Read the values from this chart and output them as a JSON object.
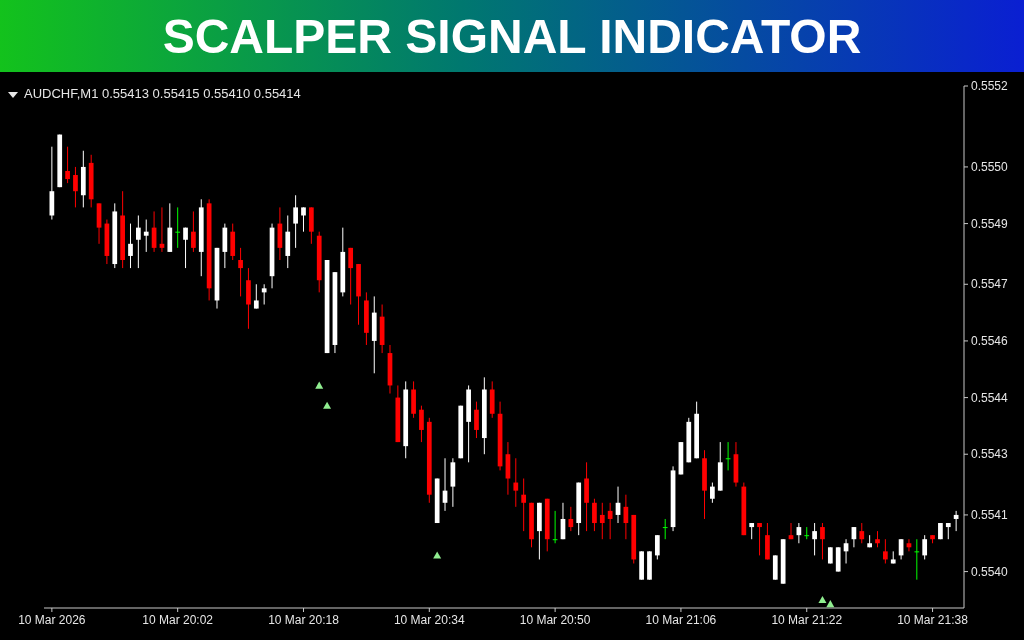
{
  "chart_data": {
    "type": "candlestick",
    "title": "SCALPER SIGNAL INDICATOR",
    "subtitle": "AUDCHF,M1  0.55413 0.55415 0.55410 0.55414",
    "x": [
      "2026-03-10T19:46",
      "2026-03-10T19:47",
      "2026-03-10T19:48",
      "2026-03-10T19:49",
      "2026-03-10T19:50",
      "2026-03-10T19:51",
      "2026-03-10T19:52",
      "2026-03-10T19:53",
      "2026-03-10T19:54",
      "2026-03-10T19:55",
      "2026-03-10T19:56",
      "2026-03-10T19:57",
      "2026-03-10T19:58",
      "2026-03-10T19:59",
      "2026-03-10T20:00",
      "2026-03-10T20:01",
      "2026-03-10T20:02",
      "2026-03-10T20:03",
      "2026-03-10T20:04",
      "2026-03-10T20:05",
      "2026-03-10T20:06",
      "2026-03-10T20:07",
      "2026-03-10T20:08",
      "2026-03-10T20:09",
      "2026-03-10T20:10",
      "2026-03-10T20:11",
      "2026-03-10T20:12",
      "2026-03-10T20:13",
      "2026-03-10T20:14",
      "2026-03-10T20:15",
      "2026-03-10T20:16",
      "2026-03-10T20:17",
      "2026-03-10T20:18",
      "2026-03-10T20:19",
      "2026-03-10T20:20",
      "2026-03-10T20:21",
      "2026-03-10T20:22",
      "2026-03-10T20:23",
      "2026-03-10T20:24",
      "2026-03-10T20:25",
      "2026-03-10T20:26",
      "2026-03-10T20:27",
      "2026-03-10T20:28",
      "2026-03-10T20:29",
      "2026-03-10T20:30",
      "2026-03-10T20:31",
      "2026-03-10T20:32",
      "2026-03-10T20:33",
      "2026-03-10T20:34",
      "2026-03-10T20:35",
      "2026-03-10T20:36",
      "2026-03-10T20:37",
      "2026-03-10T20:38",
      "2026-03-10T20:39",
      "2026-03-10T20:40",
      "2026-03-10T20:41",
      "2026-03-10T20:42",
      "2026-03-10T20:43",
      "2026-03-10T20:44",
      "2026-03-10T20:45",
      "2026-03-10T20:46",
      "2026-03-10T20:47",
      "2026-03-10T20:48",
      "2026-03-10T20:49",
      "2026-03-10T20:50",
      "2026-03-10T20:51",
      "2026-03-10T20:52",
      "2026-03-10T20:53",
      "2026-03-10T20:54",
      "2026-03-10T20:55",
      "2026-03-10T20:56",
      "2026-03-10T20:57",
      "2026-03-10T20:58",
      "2026-03-10T20:59",
      "2026-03-10T21:00",
      "2026-03-10T21:01",
      "2026-03-10T21:02",
      "2026-03-10T21:03",
      "2026-03-10T21:04",
      "2026-03-10T21:05",
      "2026-03-10T21:06",
      "2026-03-10T21:07",
      "2026-03-10T21:08",
      "2026-03-10T21:09",
      "2026-03-10T21:10",
      "2026-03-10T21:11",
      "2026-03-10T21:12",
      "2026-03-10T21:13",
      "2026-03-10T21:14",
      "2026-03-10T21:15",
      "2026-03-10T21:16",
      "2026-03-10T21:17",
      "2026-03-10T21:18",
      "2026-03-10T21:19",
      "2026-03-10T21:20",
      "2026-03-10T21:21",
      "2026-03-10T21:22",
      "2026-03-10T21:23",
      "2026-03-10T21:24",
      "2026-03-10T21:25",
      "2026-03-10T21:26",
      "2026-03-10T21:27",
      "2026-03-10T21:28",
      "2026-03-10T21:29",
      "2026-03-10T21:30",
      "2026-03-10T21:31",
      "2026-03-10T21:32",
      "2026-03-10T21:33",
      "2026-03-10T21:34",
      "2026-03-10T21:35",
      "2026-03-10T21:36",
      "2026-03-10T21:37",
      "2026-03-10T21:38",
      "2026-03-10T21:39",
      "2026-03-10T21:40",
      "2026-03-10T21:41"
    ],
    "ohlc": [
      [
        0.55488,
        0.55505,
        0.55487,
        0.55494
      ],
      [
        0.55495,
        0.55508,
        0.55495,
        0.55508
      ],
      [
        0.55499,
        0.55505,
        0.55496,
        0.55497
      ],
      [
        0.55498,
        0.555,
        0.5549,
        0.55494
      ],
      [
        0.55493,
        0.55504,
        0.5549,
        0.555
      ],
      [
        0.55501,
        0.55503,
        0.5549,
        0.55492
      ],
      [
        0.55491,
        0.55491,
        0.55481,
        0.55485
      ],
      [
        0.55486,
        0.55487,
        0.55476,
        0.55478
      ],
      [
        0.55476,
        0.55491,
        0.55475,
        0.55489
      ],
      [
        0.55488,
        0.55494,
        0.55475,
        0.55477
      ],
      [
        0.55478,
        0.55486,
        0.55475,
        0.55481
      ],
      [
        0.55482,
        0.55488,
        0.55475,
        0.55485
      ],
      [
        0.55483,
        0.55487,
        0.55479,
        0.55484
      ],
      [
        0.55485,
        0.55489,
        0.55479,
        0.5548
      ],
      [
        0.55481,
        0.5549,
        0.55479,
        0.5548
      ],
      [
        0.55479,
        0.55491,
        0.55479,
        0.55485
      ],
      [
        0.55484,
        0.5549,
        0.5548,
        0.55484
      ],
      [
        0.55482,
        0.55485,
        0.55475,
        0.55485
      ],
      [
        0.55484,
        0.55489,
        0.55479,
        0.5548
      ],
      [
        0.55479,
        0.55492,
        0.55473,
        0.5549
      ],
      [
        0.55491,
        0.55492,
        0.55467,
        0.5547
      ],
      [
        0.55467,
        0.5548,
        0.55465,
        0.5548
      ],
      [
        0.55479,
        0.55486,
        0.55475,
        0.55485
      ],
      [
        0.55484,
        0.55486,
        0.55477,
        0.55478
      ],
      [
        0.55477,
        0.5548,
        0.55468,
        0.55475
      ],
      [
        0.55472,
        0.55475,
        0.5546,
        0.55466
      ],
      [
        0.55465,
        0.55471,
        0.55465,
        0.55467
      ],
      [
        0.55469,
        0.55471,
        0.55466,
        0.5547
      ],
      [
        0.55473,
        0.55486,
        0.5547,
        0.55485
      ],
      [
        0.55486,
        0.5549,
        0.55477,
        0.5548
      ],
      [
        0.55478,
        0.55488,
        0.55475,
        0.55484
      ],
      [
        0.55486,
        0.55493,
        0.5548,
        0.5549
      ],
      [
        0.55488,
        0.5549,
        0.55484,
        0.5549
      ],
      [
        0.5549,
        0.5549,
        0.55481,
        0.55484
      ],
      [
        0.55483,
        0.55484,
        0.55469,
        0.55472
      ],
      [
        0.55454,
        0.55477,
        0.55454,
        0.55477
      ],
      [
        0.55456,
        0.55474,
        0.55454,
        0.55474
      ],
      [
        0.55469,
        0.55485,
        0.55468,
        0.55479
      ],
      [
        0.5548,
        0.5548,
        0.55466,
        0.55475
      ],
      [
        0.55476,
        0.55476,
        0.55461,
        0.55468
      ],
      [
        0.55467,
        0.55469,
        0.55456,
        0.55459
      ],
      [
        0.55457,
        0.55468,
        0.55449,
        0.55464
      ],
      [
        0.55463,
        0.55466,
        0.55454,
        0.55456
      ],
      [
        0.55454,
        0.55456,
        0.55444,
        0.55446
      ],
      [
        0.55443,
        0.55446,
        0.55432,
        0.55432
      ],
      [
        0.55431,
        0.55447,
        0.55428,
        0.55445
      ],
      [
        0.55445,
        0.55447,
        0.55438,
        0.55439
      ],
      [
        0.5544,
        0.55441,
        0.55432,
        0.55435
      ],
      [
        0.55437,
        0.55438,
        0.55417,
        0.55419
      ],
      [
        0.55412,
        0.55423,
        0.55412,
        0.55423
      ],
      [
        0.55417,
        0.55428,
        0.55415,
        0.5542
      ],
      [
        0.55421,
        0.55428,
        0.55416,
        0.55427
      ],
      [
        0.55428,
        0.55441,
        0.55428,
        0.55441
      ],
      [
        0.55437,
        0.55446,
        0.55427,
        0.55445
      ],
      [
        0.5544,
        0.55442,
        0.55433,
        0.55435
      ],
      [
        0.55433,
        0.55448,
        0.55429,
        0.55445
      ],
      [
        0.55445,
        0.55447,
        0.55438,
        0.55439
      ],
      [
        0.55439,
        0.55442,
        0.55425,
        0.55426
      ],
      [
        0.55429,
        0.55432,
        0.55419,
        0.55423
      ],
      [
        0.55422,
        0.55428,
        0.55416,
        0.5542
      ],
      [
        0.55419,
        0.55423,
        0.5541,
        0.55417
      ],
      [
        0.55417,
        0.55417,
        0.55406,
        0.55408
      ],
      [
        0.5541,
        0.55417,
        0.55403,
        0.55417
      ],
      [
        0.55418,
        0.55418,
        0.55405,
        0.55408
      ],
      [
        0.55408,
        0.55415,
        0.55407,
        0.55408
      ],
      [
        0.55408,
        0.55417,
        0.55408,
        0.55413
      ],
      [
        0.55413,
        0.55416,
        0.5541,
        0.55411
      ],
      [
        0.55412,
        0.55422,
        0.55409,
        0.55422
      ],
      [
        0.55423,
        0.55427,
        0.5541,
        0.55417
      ],
      [
        0.55417,
        0.55418,
        0.5541,
        0.55412
      ],
      [
        0.55414,
        0.55417,
        0.55408,
        0.55412
      ],
      [
        0.55415,
        0.55417,
        0.55408,
        0.55413
      ],
      [
        0.55414,
        0.55421,
        0.55412,
        0.55417
      ],
      [
        0.55416,
        0.55419,
        0.55408,
        0.55412
      ],
      [
        0.55414,
        0.55414,
        0.55402,
        0.55403
      ],
      [
        0.55398,
        0.55405,
        0.55398,
        0.55405
      ],
      [
        0.55398,
        0.55405,
        0.55398,
        0.55405
      ],
      [
        0.55404,
        0.55409,
        0.55403,
        0.55409
      ],
      [
        0.55411,
        0.55413,
        0.55408,
        0.55411
      ],
      [
        0.55411,
        0.55426,
        0.5541,
        0.55425
      ],
      [
        0.55424,
        0.55432,
        0.55424,
        0.55432
      ],
      [
        0.55427,
        0.55438,
        0.55427,
        0.55437
      ],
      [
        0.55428,
        0.55442,
        0.55428,
        0.55439
      ],
      [
        0.55428,
        0.5543,
        0.55413,
        0.5542
      ],
      [
        0.55418,
        0.55422,
        0.55417,
        0.55421
      ],
      [
        0.5542,
        0.55432,
        0.5542,
        0.55427
      ],
      [
        0.55428,
        0.55432,
        0.55425,
        0.55428
      ],
      [
        0.55429,
        0.55432,
        0.55421,
        0.55422
      ],
      [
        0.55421,
        0.55422,
        0.55409,
        0.55409
      ],
      [
        0.55411,
        0.55412,
        0.55408,
        0.55412
      ],
      [
        0.55412,
        0.55412,
        0.55404,
        0.55411
      ],
      [
        0.55409,
        0.55412,
        0.55403,
        0.55403
      ],
      [
        0.55398,
        0.55404,
        0.55398,
        0.55404
      ],
      [
        0.55397,
        0.55408,
        0.55397,
        0.55408
      ],
      [
        0.55409,
        0.55412,
        0.55408,
        0.55408
      ],
      [
        0.55409,
        0.55412,
        0.55407,
        0.55411
      ],
      [
        0.55409,
        0.55411,
        0.55408,
        0.55409
      ],
      [
        0.55408,
        0.55412,
        0.55404,
        0.5541
      ],
      [
        0.55411,
        0.55412,
        0.55403,
        0.55408
      ],
      [
        0.55402,
        0.55406,
        0.55402,
        0.55406
      ],
      [
        0.554,
        0.55406,
        0.554,
        0.55406
      ],
      [
        0.55405,
        0.55408,
        0.55402,
        0.55407
      ],
      [
        0.55408,
        0.55411,
        0.55406,
        0.55411
      ],
      [
        0.5541,
        0.55412,
        0.55407,
        0.55408
      ],
      [
        0.55406,
        0.55409,
        0.55406,
        0.55407
      ],
      [
        0.55408,
        0.5541,
        0.55406,
        0.55407
      ],
      [
        0.55405,
        0.55408,
        0.55402,
        0.55403
      ],
      [
        0.55402,
        0.55405,
        0.55402,
        0.55403
      ],
      [
        0.55404,
        0.55408,
        0.55403,
        0.55408
      ],
      [
        0.55407,
        0.55408,
        0.55405,
        0.55406
      ],
      [
        0.55405,
        0.55408,
        0.55398,
        0.55405
      ],
      [
        0.55404,
        0.55409,
        0.55403,
        0.55408
      ],
      [
        0.55409,
        0.55409,
        0.55407,
        0.55408
      ],
      [
        0.55408,
        0.55412,
        0.55408,
        0.55412
      ],
      [
        0.55411,
        0.55412,
        0.55408,
        0.55412
      ],
      [
        0.55413,
        0.55415,
        0.5541,
        0.55414
      ]
    ],
    "colors": [
      "#ffffff",
      "#ffffff",
      "#ff0000",
      "#ff0000",
      "#ffffff",
      "#ff0000",
      "#ff0000",
      "#ff0000",
      "#ffffff",
      "#ff0000",
      "#ffffff",
      "#ffffff",
      "#ffffff",
      "#ff0000",
      "#ff0000",
      "#ffffff",
      "#00ff00",
      "#ffffff",
      "#ff0000",
      "#ffffff",
      "#ff0000",
      "#ffffff",
      "#ffffff",
      "#ff0000",
      "#ff0000",
      "#ff0000",
      "#ffffff",
      "#ffffff",
      "#ffffff",
      "#ff0000",
      "#ffffff",
      "#ffffff",
      "#ffffff",
      "#ff0000",
      "#ff0000",
      "#ffffff",
      "#ffffff",
      "#ffffff",
      "#ff0000",
      "#ff0000",
      "#ff0000",
      "#ffffff",
      "#ff0000",
      "#ff0000",
      "#ff0000",
      "#ffffff",
      "#ff0000",
      "#ff0000",
      "#ff0000",
      "#ffffff",
      "#ffffff",
      "#ffffff",
      "#ffffff",
      "#ffffff",
      "#ff0000",
      "#ffffff",
      "#ff0000",
      "#ff0000",
      "#ff0000",
      "#ff0000",
      "#ff0000",
      "#ff0000",
      "#ffffff",
      "#ff0000",
      "#00ff00",
      "#ffffff",
      "#ff0000",
      "#ffffff",
      "#ff0000",
      "#ff0000",
      "#ff0000",
      "#ff0000",
      "#ffffff",
      "#ff0000",
      "#ff0000",
      "#ffffff",
      "#ffffff",
      "#ffffff",
      "#00ff00",
      "#ffffff",
      "#ffffff",
      "#ffffff",
      "#ffffff",
      "#ff0000",
      "#ffffff",
      "#ffffff",
      "#00ff00",
      "#ff0000",
      "#ff0000",
      "#ffffff",
      "#ff0000",
      "#ff0000",
      "#ffffff",
      "#ffffff",
      "#ff0000",
      "#ffffff",
      "#00ff00",
      "#ffffff",
      "#ff0000",
      "#ffffff",
      "#ffffff",
      "#ffffff",
      "#ffffff",
      "#ff0000",
      "#ffffff",
      "#ff0000",
      "#ff0000",
      "#ffffff",
      "#ffffff",
      "#ff0000",
      "#00ff00",
      "#ffffff",
      "#ff0000",
      "#ffffff",
      "#ffffff",
      "#ffffff"
    ],
    "series": [
      {
        "type": "scatter",
        "marker": "triangle",
        "color": "#90ee90",
        "x": [
          "2026-03-10T20:20",
          "2026-03-10T20:21",
          "2026-03-10T20:35",
          "2026-03-10T21:24",
          "2026-03-10T21:25"
        ],
        "values": [
          0.55446,
          0.55441,
          0.55404,
          0.55393,
          0.55392
        ]
      }
    ],
    "xlim": [
      "2026-03-10T19:45",
      "2026-03-10T21:42"
    ],
    "xticks": [
      {
        "value": "2026-03-10T19:46",
        "label": "10 Mar 2026"
      },
      {
        "value": "2026-03-10T20:02",
        "label": "10 Mar 20:02"
      },
      {
        "value": "2026-03-10T20:18",
        "label": "10 Mar 20:18"
      },
      {
        "value": "2026-03-10T20:34",
        "label": "10 Mar 20:34"
      },
      {
        "value": "2026-03-10T20:50",
        "label": "10 Mar 20:50"
      },
      {
        "value": "2026-03-10T21:06",
        "label": "10 Mar 21:06"
      },
      {
        "value": "2026-03-10T21:22",
        "label": "10 Mar 21:22"
      },
      {
        "value": "2026-03-10T21:38",
        "label": "10 Mar 21:38"
      }
    ],
    "ylim": [
      0.55391,
      0.5552
    ],
    "yticks": [
      {
        "value": 0.554,
        "label": "0.5540"
      },
      {
        "value": 0.55414,
        "label": "0.5541"
      },
      {
        "value": 0.55429,
        "label": "0.5543"
      },
      {
        "value": 0.55443,
        "label": "0.5544"
      },
      {
        "value": 0.55457,
        "label": "0.5546"
      },
      {
        "value": 0.55471,
        "label": "0.5547"
      },
      {
        "value": 0.55486,
        "label": "0.5549"
      },
      {
        "value": 0.555,
        "label": "0.5550"
      },
      {
        "value": 0.5552,
        "label": "0.5552"
      }
    ]
  }
}
